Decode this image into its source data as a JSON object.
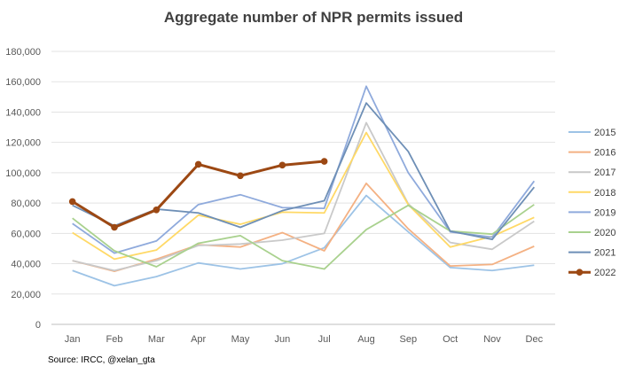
{
  "chart_data": {
    "type": "line",
    "title": "Aggregate number of NPR permits issued",
    "xlabel": "",
    "ylabel": "",
    "categories": [
      "Jan",
      "Feb",
      "Mar",
      "Apr",
      "May",
      "Jun",
      "Jul",
      "Aug",
      "Sep",
      "Oct",
      "Nov",
      "Dec"
    ],
    "ylim": [
      0,
      180000
    ],
    "yticks": [
      0,
      20000,
      40000,
      60000,
      80000,
      100000,
      120000,
      140000,
      160000,
      180000
    ],
    "ytick_labels": [
      "0",
      "20,000",
      "40,000",
      "60,000",
      "80,000",
      "100,000",
      "120,000",
      "140,000",
      "160,000",
      "180,000"
    ],
    "grid": "horizontal",
    "legend_position": "right",
    "series": [
      {
        "name": "2015",
        "color": "#9DC3E6",
        "values": [
          35500,
          25500,
          31500,
          40500,
          36500,
          40000,
          50500,
          85000,
          61000,
          37500,
          35500,
          39000
        ]
      },
      {
        "name": "2016",
        "color": "#F4B183",
        "values": [
          42000,
          35000,
          43000,
          52500,
          51000,
          60500,
          48500,
          93000,
          63000,
          38500,
          39500,
          51500
        ]
      },
      {
        "name": "2017",
        "color": "#C9C9C9",
        "values": [
          42000,
          35500,
          42000,
          52000,
          53000,
          55500,
          60000,
          133000,
          79500,
          54000,
          49500,
          68000
        ]
      },
      {
        "name": "2018",
        "color": "#FFD966",
        "values": [
          60500,
          43000,
          49000,
          72000,
          66000,
          74000,
          73500,
          126500,
          79000,
          51000,
          58000,
          70500
        ]
      },
      {
        "name": "2019",
        "color": "#8FAADC",
        "values": [
          66500,
          47000,
          55000,
          79000,
          85500,
          77000,
          76500,
          157000,
          100000,
          61000,
          57500,
          94500
        ]
      },
      {
        "name": "2020",
        "color": "#A9D18E",
        "values": [
          70000,
          48500,
          38000,
          53500,
          58500,
          42000,
          36500,
          62500,
          78500,
          61500,
          59500,
          79000
        ]
      },
      {
        "name": "2021",
        "color": "#6E8FB6",
        "values": [
          78500,
          65000,
          76000,
          73500,
          64000,
          75000,
          81500,
          146000,
          114000,
          61500,
          56000,
          90500
        ]
      },
      {
        "name": "2022",
        "color": "#9C4813",
        "values": [
          81000,
          64000,
          75500,
          105500,
          98000,
          105000,
          107500,
          null,
          null,
          null,
          null,
          null
        ]
      }
    ]
  },
  "source": "Source: IRCC, @xelan_gta"
}
